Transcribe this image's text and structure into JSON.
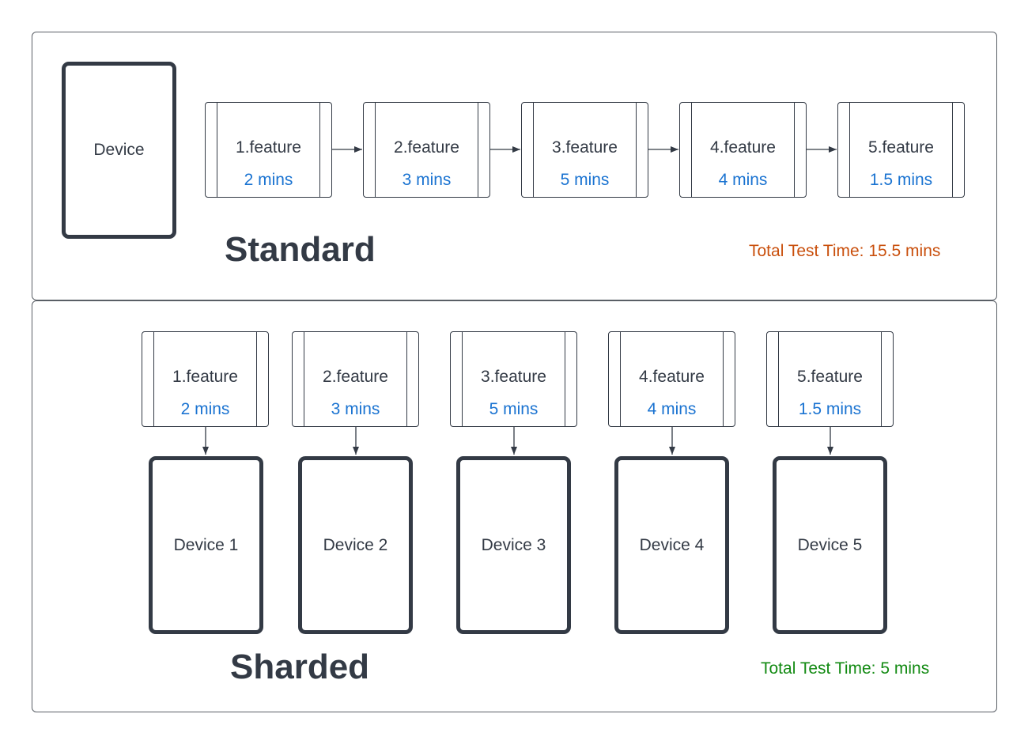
{
  "standard": {
    "device_label": "Device",
    "features": [
      {
        "name": "1.feature",
        "time": "2 mins"
      },
      {
        "name": "2.feature",
        "time": "3 mins"
      },
      {
        "name": "3.feature",
        "time": "5 mins"
      },
      {
        "name": "4.feature",
        "time": "4 mins"
      },
      {
        "name": "5.feature",
        "time": "1.5 mins"
      }
    ],
    "title": "Standard",
    "total": "Total Test Time: 15.5 mins",
    "total_color": "#c94f0c"
  },
  "sharded": {
    "features": [
      {
        "name": "1.feature",
        "time": "2 mins"
      },
      {
        "name": "2.feature",
        "time": "3 mins"
      },
      {
        "name": "3.feature",
        "time": "5 mins"
      },
      {
        "name": "4.feature",
        "time": "4 mins"
      },
      {
        "name": "5.feature",
        "time": "1.5 mins"
      }
    ],
    "devices": [
      "Device 1",
      "Device 2",
      "Device 3",
      "Device 4",
      "Device 5"
    ],
    "title": "Sharded",
    "total": "Total Test Time: 5 mins",
    "total_color": "#128a12"
  },
  "colors": {
    "stroke": "#333a45",
    "time_text": "#1a73d1"
  }
}
